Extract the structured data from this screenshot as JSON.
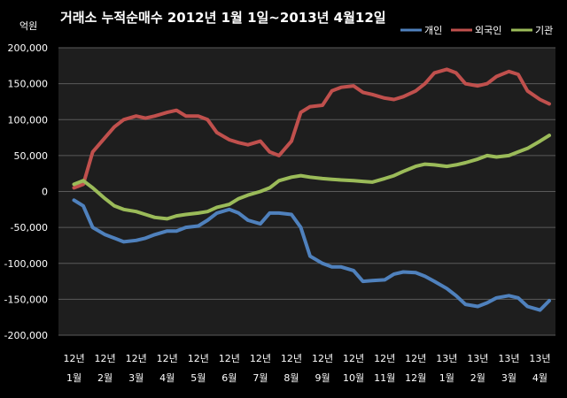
{
  "chart_data": {
    "type": "line",
    "title": "거래소 누적순매수 2012년 1월 1일~2013년 4월12일",
    "unit_label": "억원",
    "ylim": [
      -200000,
      200000
    ],
    "y_ticks": [
      "200,000",
      "150,000",
      "100,000",
      "50,000",
      "0",
      "-50,000",
      "-100,000",
      "-150,000",
      "-200,000"
    ],
    "y_tick_values": [
      200000,
      150000,
      100000,
      50000,
      0,
      -50000,
      -100000,
      -150000,
      -200000
    ],
    "grid": "horizontal",
    "legend_position": "top-right",
    "categories_year": [
      "12년",
      "12년",
      "12년",
      "12년",
      "12년",
      "12년",
      "12년",
      "12년",
      "12년",
      "12년",
      "12년",
      "12년",
      "13년",
      "13년",
      "13년",
      "13년"
    ],
    "categories_month": [
      "1월",
      "2월",
      "3월",
      "4월",
      "5월",
      "6월",
      "7월",
      "8월",
      "9월",
      "10월",
      "11월",
      "12월",
      "1월",
      "2월",
      "3월",
      "4월"
    ],
    "x": [
      0,
      0.3,
      0.6,
      1,
      1.3,
      1.6,
      2,
      2.3,
      2.6,
      3,
      3.3,
      3.6,
      4,
      4.3,
      4.6,
      5,
      5.3,
      5.6,
      6,
      6.3,
      6.6,
      7,
      7.3,
      7.6,
      8,
      8.3,
      8.6,
      9,
      9.3,
      9.6,
      10,
      10.3,
      10.6,
      11,
      11.3,
      11.6,
      12,
      12.3,
      12.6,
      13,
      13.3,
      13.6,
      14,
      14.3,
      14.6,
      15,
      15.3
    ],
    "series": [
      {
        "name": "개인",
        "color": "#4f81bd",
        "values": [
          -12000,
          -20000,
          -50000,
          -60000,
          -65000,
          -70000,
          -68000,
          -65000,
          -60000,
          -55000,
          -55000,
          -50000,
          -48000,
          -40000,
          -30000,
          -25000,
          -30000,
          -40000,
          -45000,
          -30000,
          -30000,
          -32000,
          -50000,
          -90000,
          -100000,
          -105000,
          -105000,
          -110000,
          -125000,
          -124000,
          -123000,
          -115000,
          -112000,
          -113000,
          -118000,
          -125000,
          -135000,
          -145000,
          -157000,
          -160000,
          -155000,
          -148000,
          -145000,
          -148000,
          -160000,
          -165000,
          -152000
        ]
      },
      {
        "name": "외국인",
        "color": "#c0504d",
        "values": [
          5000,
          10000,
          55000,
          75000,
          90000,
          100000,
          105000,
          102000,
          105000,
          110000,
          113000,
          105000,
          105000,
          100000,
          82000,
          72000,
          68000,
          65000,
          70000,
          55000,
          50000,
          70000,
          110000,
          118000,
          120000,
          140000,
          145000,
          147000,
          138000,
          135000,
          130000,
          128000,
          132000,
          140000,
          150000,
          165000,
          170000,
          165000,
          150000,
          147000,
          150000,
          160000,
          167000,
          163000,
          140000,
          128000,
          122000
        ]
      },
      {
        "name": "기관",
        "color": "#9bbb59",
        "values": [
          10000,
          15000,
          5000,
          -10000,
          -20000,
          -25000,
          -28000,
          -32000,
          -36000,
          -38000,
          -34000,
          -32000,
          -30000,
          -28000,
          -22000,
          -18000,
          -10000,
          -5000,
          0,
          5000,
          15000,
          20000,
          22000,
          20000,
          18000,
          17000,
          16000,
          15000,
          14000,
          13000,
          18000,
          22000,
          28000,
          35000,
          38000,
          37000,
          35000,
          37000,
          40000,
          45000,
          50000,
          48000,
          50000,
          55000,
          60000,
          70000,
          78000
        ]
      }
    ]
  }
}
